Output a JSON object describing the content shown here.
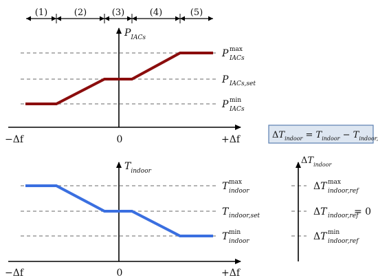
{
  "colors": {
    "power_curve": "#8b0d0d",
    "temp_curve": "#3a6fe0",
    "dashed": "#9a9a9a",
    "equation_box_fill": "#dde6f1",
    "equation_box_stroke": "#5a7fb0"
  },
  "regions": [
    "(1)",
    "(2)",
    "(3)",
    "(4)",
    "(5)"
  ],
  "top_plot": {
    "y_axis_label": {
      "base": "P",
      "sub": "IACs"
    },
    "x_left": "−Δf",
    "x_origin": "0",
    "x_right": "+Δf",
    "levels": [
      {
        "base": "P",
        "sup": "max",
        "sub": "IACs",
        "subscript_line": ""
      },
      {
        "base": "P",
        "sup": "",
        "sub": "IACs,set",
        "subscript_line": ""
      },
      {
        "base": "P",
        "sup": "min",
        "sub": "IACs",
        "subscript_line": ""
      }
    ]
  },
  "bottom_plot": {
    "y_axis_label": {
      "base": "T",
      "sub": "indoor"
    },
    "x_left": "−Δf",
    "x_origin": "0",
    "x_right": "+Δf",
    "levels": [
      {
        "base": "T",
        "sup": "max",
        "sub": "indoor"
      },
      {
        "base": "T",
        "sup": "",
        "sub": "indoor,set"
      },
      {
        "base": "T",
        "sup": "min",
        "sub": "indoor"
      }
    ]
  },
  "equation": {
    "lhs_delta": "Δ",
    "lhs_base": "T",
    "lhs_sub": "indoor",
    "eq": " = ",
    "t1_base": "T",
    "t1_sub": "indoor",
    "minus": " − ",
    "t2_base": "T",
    "t2_sub": "indoor,set"
  },
  "delta_axis": {
    "label": {
      "delta": "Δ",
      "base": "T",
      "sub": "indoor"
    },
    "ticks": [
      {
        "delta": "Δ",
        "base": "T",
        "sup": "max",
        "sub": "indoor,ref",
        "suffix": ""
      },
      {
        "delta": "Δ",
        "base": "T",
        "sup": "",
        "sub": "indoor,ref",
        "suffix": " = 0"
      },
      {
        "delta": "Δ",
        "base": "T",
        "sup": "min",
        "sub": "indoor,ref",
        "suffix": ""
      }
    ]
  }
}
